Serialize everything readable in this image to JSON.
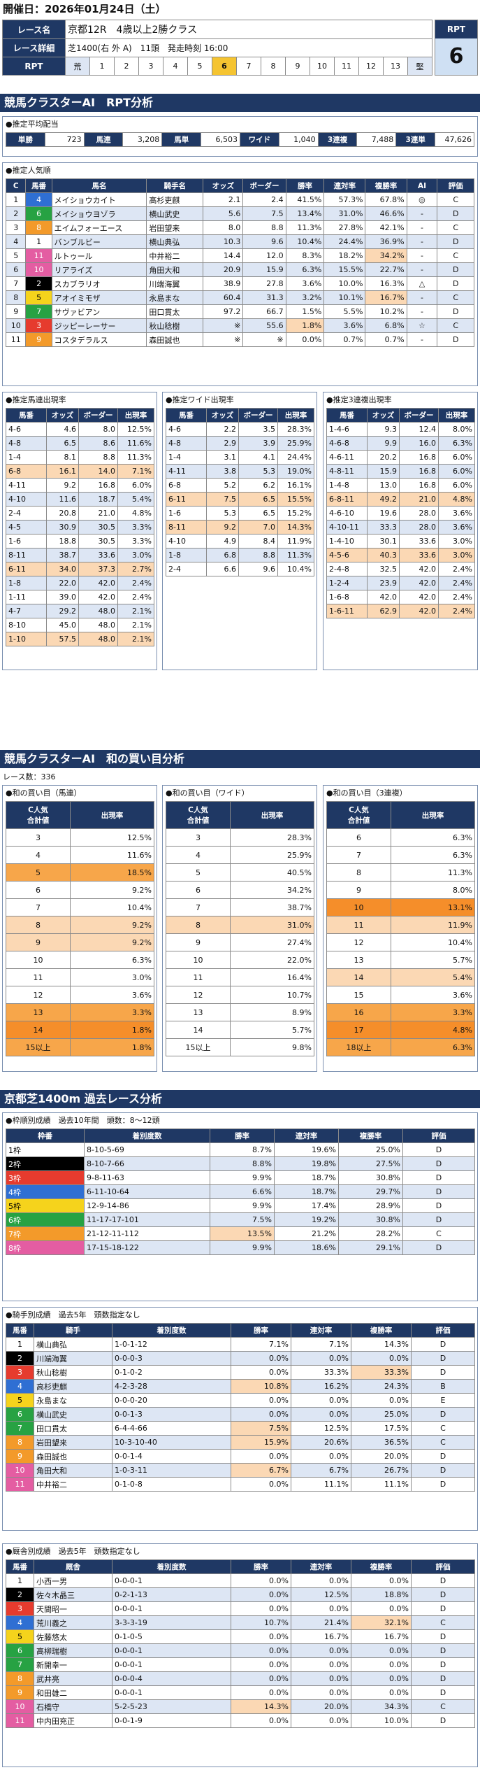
{
  "header": {
    "date_label": "開催日：2026年01月24日（土）",
    "race_name_label": "レース名",
    "race_name": "京都12R　4歳以上2勝クラス",
    "race_detail_label": "レース詳細",
    "race_detail": "芝1400(右 外 A)　11頭　発走時刻 16:00",
    "rpt_label": "RPT",
    "rpt_scale_low": "荒",
    "rpt_scale_high": "堅",
    "rpt_numbers": [
      "1",
      "2",
      "3",
      "4",
      "5",
      "6",
      "7",
      "8",
      "9",
      "10",
      "11",
      "12",
      "13"
    ],
    "rpt_value": "6",
    "rpt_side_label": "RPT"
  },
  "sec1_title": "競馬クラスターAI　RPT分析",
  "payout": {
    "title": "●推定平均配当",
    "items": [
      [
        "単勝",
        "723"
      ],
      [
        "馬連",
        "3,208"
      ],
      [
        "馬単",
        "6,503"
      ],
      [
        "ワイド",
        "1,040"
      ],
      [
        "3連複",
        "7,488"
      ],
      [
        "3連単",
        "47,626"
      ]
    ]
  },
  "popular": {
    "title": "●推定人気順",
    "headers": [
      "C",
      "馬番",
      "馬名",
      "騎手名",
      "オッズ",
      "ボーダー",
      "勝率",
      "連対率",
      "複勝率",
      "AI",
      "評価"
    ],
    "rows": [
      [
        "1",
        "4",
        "メイショウカイト",
        "高杉吏麒",
        "2.1",
        "2.4",
        "41.5%",
        "57.3%",
        "67.8%",
        "◎",
        "C"
      ],
      [
        "2",
        "6",
        "メイショウヨゾラ",
        "横山武史",
        "5.6",
        "7.5",
        "13.4%",
        "31.0%",
        "46.6%",
        "-",
        "D"
      ],
      [
        "3",
        "8",
        "エイムフォーエース",
        "岩田望来",
        "8.0",
        "8.8",
        "11.3%",
        "27.8%",
        "42.1%",
        "-",
        "C"
      ],
      [
        "4",
        "1",
        "バンブルビー",
        "横山典弘",
        "10.3",
        "9.6",
        "10.4%",
        "24.4%",
        "36.9%",
        "-",
        "D"
      ],
      [
        "5",
        "11",
        "ルトゥール",
        "中井裕二",
        "14.4",
        "12.0",
        "8.3%",
        "18.2%",
        "34.2%",
        "-",
        "C"
      ],
      [
        "6",
        "10",
        "リアライズ",
        "角田大和",
        "20.9",
        "15.9",
        "6.3%",
        "15.5%",
        "22.7%",
        "-",
        "D"
      ],
      [
        "7",
        "2",
        "スカブラリオ",
        "川端海翼",
        "38.9",
        "27.8",
        "3.6%",
        "10.0%",
        "16.3%",
        "△",
        "D"
      ],
      [
        "8",
        "5",
        "アオイミモザ",
        "永島まな",
        "60.4",
        "31.3",
        "3.2%",
        "10.1%",
        "16.7%",
        "-",
        "C"
      ],
      [
        "9",
        "7",
        "サヴァビアン",
        "田口貫太",
        "97.2",
        "66.7",
        "1.5%",
        "5.5%",
        "10.2%",
        "-",
        "D"
      ],
      [
        "10",
        "3",
        "ジッピーレーサー",
        "秋山稔樹",
        "※",
        "55.6",
        "1.8%",
        "3.6%",
        "6.8%",
        "☆",
        "C"
      ],
      [
        "11",
        "9",
        "コスタデラルス",
        "森田誠也",
        "※",
        "※",
        "0.0%",
        "0.7%",
        "0.7%",
        "-",
        "D"
      ]
    ]
  },
  "umaren": {
    "title": "●推定馬連出現率",
    "headers": [
      "馬番",
      "オッズ",
      "ボーダー",
      "出現率"
    ],
    "rows": [
      [
        "4-6",
        "4.6",
        "8.0",
        "12.5%"
      ],
      [
        "4-8",
        "6.5",
        "8.6",
        "11.6%"
      ],
      [
        "1-4",
        "8.1",
        "8.8",
        "11.3%"
      ],
      [
        "6-8",
        "16.1",
        "14.0",
        "7.1%"
      ],
      [
        "4-11",
        "9.2",
        "16.8",
        "6.0%"
      ],
      [
        "4-10",
        "11.6",
        "18.7",
        "5.4%"
      ],
      [
        "2-4",
        "20.8",
        "21.0",
        "4.8%"
      ],
      [
        "4-5",
        "30.9",
        "30.5",
        "3.3%"
      ],
      [
        "1-6",
        "18.8",
        "30.5",
        "3.3%"
      ],
      [
        "8-11",
        "38.7",
        "33.6",
        "3.0%"
      ],
      [
        "6-11",
        "34.0",
        "37.3",
        "2.7%"
      ],
      [
        "1-8",
        "22.0",
        "42.0",
        "2.4%"
      ],
      [
        "1-11",
        "39.0",
        "42.0",
        "2.4%"
      ],
      [
        "4-7",
        "29.2",
        "48.0",
        "2.1%"
      ],
      [
        "8-10",
        "45.0",
        "48.0",
        "2.1%"
      ],
      [
        "1-10",
        "57.5",
        "48.0",
        "2.1%"
      ]
    ]
  },
  "wide": {
    "title": "●推定ワイド出現率",
    "headers": [
      "馬番",
      "オッズ",
      "ボーダー",
      "出現率"
    ],
    "rows": [
      [
        "4-6",
        "2.2",
        "3.5",
        "28.3%"
      ],
      [
        "4-8",
        "2.9",
        "3.9",
        "25.9%"
      ],
      [
        "1-4",
        "3.1",
        "4.1",
        "24.4%"
      ],
      [
        "4-11",
        "3.8",
        "5.3",
        "19.0%"
      ],
      [
        "6-8",
        "5.2",
        "6.2",
        "16.1%"
      ],
      [
        "6-11",
        "7.5",
        "6.5",
        "15.5%"
      ],
      [
        "1-6",
        "5.3",
        "6.5",
        "15.2%"
      ],
      [
        "8-11",
        "9.2",
        "7.0",
        "14.3%"
      ],
      [
        "4-10",
        "4.9",
        "8.4",
        "11.9%"
      ],
      [
        "1-8",
        "6.8",
        "8.8",
        "11.3%"
      ],
      [
        "2-4",
        "6.6",
        "9.6",
        "10.4%"
      ]
    ]
  },
  "sanrenpuku": {
    "title": "●推定3連複出現率",
    "headers": [
      "馬番",
      "オッズ",
      "ボーダー",
      "出現率"
    ],
    "rows": [
      [
        "1-4-6",
        "9.3",
        "12.4",
        "8.0%"
      ],
      [
        "4-6-8",
        "9.9",
        "16.0",
        "6.3%"
      ],
      [
        "4-6-11",
        "20.2",
        "16.8",
        "6.0%"
      ],
      [
        "4-8-11",
        "15.9",
        "16.8",
        "6.0%"
      ],
      [
        "1-4-8",
        "13.0",
        "16.8",
        "6.0%"
      ],
      [
        "6-8-11",
        "49.2",
        "21.0",
        "4.8%"
      ],
      [
        "4-6-10",
        "19.6",
        "28.0",
        "3.6%"
      ],
      [
        "4-10-11",
        "33.3",
        "28.0",
        "3.6%"
      ],
      [
        "1-4-10",
        "30.1",
        "33.6",
        "3.0%"
      ],
      [
        "4-5-6",
        "40.3",
        "33.6",
        "3.0%"
      ],
      [
        "2-4-8",
        "32.5",
        "42.0",
        "2.4%"
      ],
      [
        "1-2-4",
        "23.9",
        "42.0",
        "2.4%"
      ],
      [
        "1-6-8",
        "42.0",
        "42.0",
        "2.4%"
      ],
      [
        "1-6-11",
        "62.9",
        "42.0",
        "2.4%"
      ]
    ]
  },
  "sec2_title": "競馬クラスターAI　和の買い目分析",
  "race_count": "レース数：336",
  "wa_umaren": {
    "title": "●和の買い目（馬連）",
    "headers": [
      "C人気\n合計値",
      "出現率"
    ],
    "rows": [
      [
        "3",
        "12.5%"
      ],
      [
        "4",
        "11.6%"
      ],
      [
        "5",
        "18.5%"
      ],
      [
        "6",
        "9.2%"
      ],
      [
        "7",
        "10.4%"
      ],
      [
        "8",
        "9.2%"
      ],
      [
        "9",
        "9.2%"
      ],
      [
        "10",
        "6.3%"
      ],
      [
        "11",
        "3.0%"
      ],
      [
        "12",
        "3.6%"
      ],
      [
        "13",
        "3.3%"
      ],
      [
        "14",
        "1.8%"
      ],
      [
        "15以上",
        "1.8%"
      ]
    ]
  },
  "wa_wide": {
    "title": "●和の買い目（ワイド）",
    "headers": [
      "C人気\n合計値",
      "出現率"
    ],
    "rows": [
      [
        "3",
        "28.3%"
      ],
      [
        "4",
        "25.9%"
      ],
      [
        "5",
        "40.5%"
      ],
      [
        "6",
        "34.2%"
      ],
      [
        "7",
        "38.7%"
      ],
      [
        "8",
        "31.0%"
      ],
      [
        "9",
        "27.4%"
      ],
      [
        "10",
        "22.0%"
      ],
      [
        "11",
        "16.4%"
      ],
      [
        "12",
        "10.7%"
      ],
      [
        "13",
        "8.9%"
      ],
      [
        "14",
        "5.7%"
      ],
      [
        "15以上",
        "9.8%"
      ]
    ]
  },
  "wa_sanren": {
    "title": "●和の買い目（3連複）",
    "headers": [
      "C人気\n合計値",
      "出現率"
    ],
    "rows": [
      [
        "6",
        "6.3%"
      ],
      [
        "7",
        "6.3%"
      ],
      [
        "8",
        "11.3%"
      ],
      [
        "9",
        "8.0%"
      ],
      [
        "10",
        "13.1%"
      ],
      [
        "11",
        "11.9%"
      ],
      [
        "12",
        "10.4%"
      ],
      [
        "13",
        "5.7%"
      ],
      [
        "14",
        "5.4%"
      ],
      [
        "15",
        "3.6%"
      ],
      [
        "16",
        "3.3%"
      ],
      [
        "17",
        "4.8%"
      ],
      [
        "18以上",
        "6.3%"
      ]
    ]
  },
  "sec3_title": "京都芝1400m 過去レース分析",
  "waku": {
    "title": "●枠順別成績　過去10年間　頭数：8～12頭",
    "headers": [
      "枠番",
      "着別度数",
      "勝率",
      "連対率",
      "複勝率",
      "評価"
    ],
    "rows": [
      [
        "1枠",
        "8-10-5-69",
        "8.7%",
        "19.6%",
        "25.0%",
        "D"
      ],
      [
        "2枠",
        "8-10-7-66",
        "8.8%",
        "19.8%",
        "27.5%",
        "D"
      ],
      [
        "3枠",
        "9-8-11-63",
        "9.9%",
        "18.7%",
        "30.8%",
        "D"
      ],
      [
        "4枠",
        "6-11-10-64",
        "6.6%",
        "18.7%",
        "29.7%",
        "D"
      ],
      [
        "5枠",
        "12-9-14-86",
        "9.9%",
        "17.4%",
        "28.9%",
        "D"
      ],
      [
        "6枠",
        "11-17-17-101",
        "7.5%",
        "19.2%",
        "30.8%",
        "D"
      ],
      [
        "7枠",
        "21-12-11-112",
        "13.5%",
        "21.2%",
        "28.2%",
        "C"
      ],
      [
        "8枠",
        "17-15-18-122",
        "9.9%",
        "18.6%",
        "29.1%",
        "D"
      ]
    ]
  },
  "jockey": {
    "title": "●騎手別成績　過去5年　頭数指定なし",
    "headers": [
      "馬番",
      "騎手",
      "着別度数",
      "勝率",
      "連対率",
      "複勝率",
      "評価"
    ],
    "rows": [
      [
        "1",
        "横山典弘",
        "1-0-1-12",
        "7.1%",
        "7.1%",
        "14.3%",
        "D"
      ],
      [
        "2",
        "川端海翼",
        "0-0-0-3",
        "0.0%",
        "0.0%",
        "0.0%",
        "D"
      ],
      [
        "3",
        "秋山稔樹",
        "0-1-0-2",
        "0.0%",
        "33.3%",
        "33.3%",
        "D"
      ],
      [
        "4",
        "高杉吏麒",
        "4-2-3-28",
        "10.8%",
        "16.2%",
        "24.3%",
        "B"
      ],
      [
        "5",
        "永島まな",
        "0-0-0-20",
        "0.0%",
        "0.0%",
        "0.0%",
        "E"
      ],
      [
        "6",
        "横山武史",
        "0-0-1-3",
        "0.0%",
        "0.0%",
        "25.0%",
        "D"
      ],
      [
        "7",
        "田口貫太",
        "6-4-4-66",
        "7.5%",
        "12.5%",
        "17.5%",
        "C"
      ],
      [
        "8",
        "岩田望来",
        "10-3-10-40",
        "15.9%",
        "20.6%",
        "36.5%",
        "C"
      ],
      [
        "9",
        "森田誠也",
        "0-0-1-4",
        "0.0%",
        "0.0%",
        "20.0%",
        "D"
      ],
      [
        "10",
        "角田大和",
        "1-0-3-11",
        "6.7%",
        "6.7%",
        "26.7%",
        "D"
      ],
      [
        "11",
        "中井裕二",
        "0-1-0-8",
        "0.0%",
        "11.1%",
        "11.1%",
        "D"
      ]
    ]
  },
  "trainer": {
    "title": "●厩舎別成績　過去5年　頭数指定なし",
    "headers": [
      "馬番",
      "厩舎",
      "着別度数",
      "勝率",
      "連対率",
      "複勝率",
      "評価"
    ],
    "rows": [
      [
        "1",
        "小西一男",
        "0-0-0-1",
        "0.0%",
        "0.0%",
        "0.0%",
        "D"
      ],
      [
        "2",
        "佐々木晶三",
        "0-2-1-13",
        "0.0%",
        "12.5%",
        "18.8%",
        "D"
      ],
      [
        "3",
        "天間昭一",
        "0-0-0-1",
        "0.0%",
        "0.0%",
        "0.0%",
        "D"
      ],
      [
        "4",
        "荒川義之",
        "3-3-3-19",
        "10.7%",
        "21.4%",
        "32.1%",
        "C"
      ],
      [
        "5",
        "佐藤悠太",
        "0-1-0-5",
        "0.0%",
        "16.7%",
        "16.7%",
        "D"
      ],
      [
        "6",
        "高柳瑞樹",
        "0-0-0-1",
        "0.0%",
        "0.0%",
        "0.0%",
        "D"
      ],
      [
        "7",
        "新開幸一",
        "0-0-0-1",
        "0.0%",
        "0.0%",
        "0.0%",
        "D"
      ],
      [
        "8",
        "武井亮",
        "0-0-0-4",
        "0.0%",
        "0.0%",
        "0.0%",
        "D"
      ],
      [
        "9",
        "和田雄二",
        "0-0-0-1",
        "0.0%",
        "0.0%",
        "0.0%",
        "D"
      ],
      [
        "10",
        "石橋守",
        "5-2-5-23",
        "14.3%",
        "20.0%",
        "34.3%",
        "C"
      ],
      [
        "11",
        "中内田充正",
        "0-0-1-9",
        "0.0%",
        "0.0%",
        "10.0%",
        "D"
      ]
    ]
  },
  "waku_colors": [
    "#ffffff",
    "#000000",
    "#e63b2e",
    "#2f6fd3",
    "#f5d31c",
    "#27a243",
    "#f39a2a",
    "#e45da2"
  ]
}
